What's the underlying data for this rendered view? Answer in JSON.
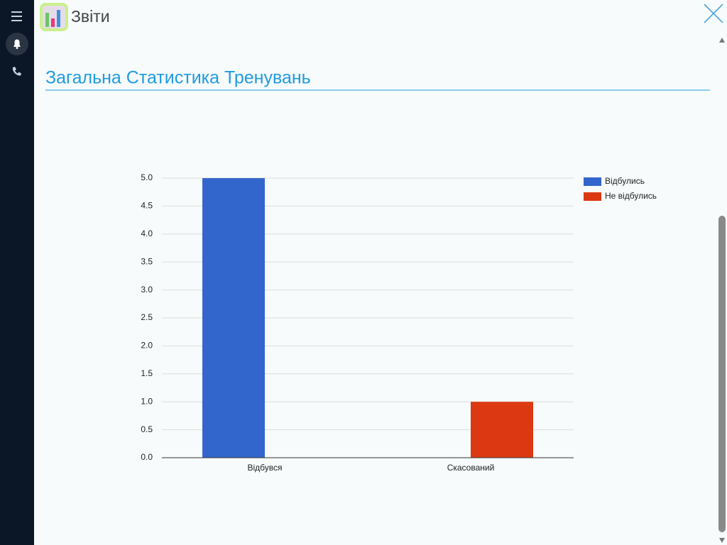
{
  "header": {
    "title": "Звіти"
  },
  "heading": "Загальна Статистика Тренувань",
  "chart_data": {
    "type": "bar",
    "categories": [
      "Відбувся",
      "Скасований"
    ],
    "series": [
      {
        "name": "Відбулись",
        "color": "#3366cc",
        "values": [
          5,
          0
        ]
      },
      {
        "name": "Не відбулись",
        "color": "#dc3912",
        "values": [
          0,
          1
        ]
      }
    ],
    "ylim": [
      0,
      5
    ],
    "yticks": [
      {
        "value": 0,
        "label": "0.0"
      },
      {
        "value": 0.5,
        "label": "0.5"
      },
      {
        "value": 1,
        "label": "1.0"
      },
      {
        "value": 1.5,
        "label": "1.5"
      },
      {
        "value": 2,
        "label": "2.0"
      },
      {
        "value": 2.5,
        "label": "2.5"
      },
      {
        "value": 3,
        "label": "3.0"
      },
      {
        "value": 3.5,
        "label": "3.5"
      },
      {
        "value": 4,
        "label": "4.0"
      },
      {
        "value": 4.5,
        "label": "4.5"
      },
      {
        "value": 5,
        "label": "5.0"
      }
    ],
    "grid": true,
    "legend": "right"
  }
}
